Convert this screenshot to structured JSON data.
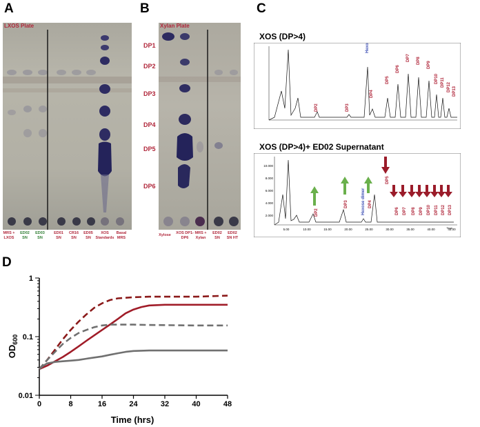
{
  "panel_labels": {
    "a": "A",
    "b": "B",
    "c": "C",
    "d": "D"
  },
  "panelA": {
    "title": "LXOS Plate",
    "lanes": [
      {
        "label": "MRS + LXOS",
        "color": "red"
      },
      {
        "label": "ED02 SN",
        "color": "green"
      },
      {
        "label": "ED03 SN",
        "color": "green"
      },
      {
        "label": "ED01 SN",
        "color": "red"
      },
      {
        "label": "CR16 SN",
        "color": "red"
      },
      {
        "label": "ED05 SN",
        "color": "red"
      },
      {
        "label": "XOS Standards",
        "color": "red"
      },
      {
        "label": "Basal MRS",
        "color": "red"
      }
    ]
  },
  "panelB": {
    "title": "Xylan Plate",
    "dp_labels": [
      "DP1",
      "DP2",
      "DP3",
      "DP4",
      "DP5",
      "DP6"
    ],
    "lanes": [
      {
        "label": "Xylose"
      },
      {
        "label": "XOS DP1-DP6"
      },
      {
        "label": "MRS + Xylan"
      },
      {
        "label": "ED02 SN"
      },
      {
        "label": "ED02 SN HT"
      }
    ]
  },
  "panelC": {
    "top_title": "XOS (DP>4)",
    "bottom_title": "XOS (DP>4)+ ED02 Supernatant",
    "peak_labels_top": [
      "DP2",
      "DP3",
      "Hexose dimer",
      "DP4",
      "DP5",
      "DP6",
      "DP7",
      "DP8",
      "DP9",
      "DP10",
      "DP11",
      "DP12",
      "DP13"
    ],
    "peak_labels_bottom": [
      "DP2",
      "DP3",
      "Hexose dimer",
      "DP4",
      "DP5",
      "DP6",
      "DP7",
      "DP8",
      "DP9",
      "DP10",
      "DP11",
      "DP12",
      "DP13"
    ],
    "bottom_xticks": [
      "5.00",
      "10.00",
      "15.00",
      "20.00",
      "25.00",
      "30.00",
      "35.00",
      "40.00",
      "45.00"
    ],
    "bottom_yticks": [
      "2.000",
      "4.000",
      "6.000",
      "8.000",
      "10.000"
    ],
    "bottom_xaxis_label": "Time"
  },
  "chart_data": {
    "type": "line",
    "title": "",
    "xlabel": "Time (hrs)",
    "ylabel": "OD600",
    "ylabel_main": "OD",
    "ylabel_sub": "600",
    "xlim": [
      0,
      48
    ],
    "ylim": [
      0.01,
      1
    ],
    "log_y": true,
    "xticks": [
      "0",
      "8",
      "16",
      "24",
      "32",
      "40",
      "48"
    ],
    "yticks": [
      "0.01",
      "0.1",
      "1"
    ],
    "series": [
      {
        "color": "#8b1a1a",
        "style": "dashed",
        "x": [
          0,
          2,
          4,
          6,
          8,
          10,
          12,
          14,
          16,
          18,
          20,
          24,
          28,
          32,
          36,
          40,
          44,
          48
        ],
        "y": [
          0.028,
          0.04,
          0.06,
          0.09,
          0.13,
          0.18,
          0.24,
          0.31,
          0.37,
          0.42,
          0.45,
          0.47,
          0.48,
          0.48,
          0.48,
          0.48,
          0.49,
          0.5
        ]
      },
      {
        "color": "#a01c28",
        "style": "solid",
        "x": [
          0,
          2,
          4,
          6,
          8,
          10,
          12,
          14,
          16,
          18,
          20,
          22,
          24,
          26,
          28,
          32,
          36,
          40,
          44,
          48
        ],
        "y": [
          0.028,
          0.032,
          0.038,
          0.045,
          0.055,
          0.068,
          0.085,
          0.105,
          0.13,
          0.16,
          0.2,
          0.25,
          0.29,
          0.32,
          0.34,
          0.35,
          0.35,
          0.35,
          0.35,
          0.35
        ]
      },
      {
        "color": "#707070",
        "style": "dashed",
        "x": [
          0,
          2,
          4,
          6,
          8,
          10,
          12,
          14,
          16,
          18,
          20,
          24,
          28,
          32,
          36,
          40,
          44,
          48
        ],
        "y": [
          0.028,
          0.04,
          0.055,
          0.075,
          0.095,
          0.115,
          0.13,
          0.145,
          0.155,
          0.16,
          0.16,
          0.16,
          0.158,
          0.157,
          0.156,
          0.155,
          0.155,
          0.155
        ]
      },
      {
        "color": "#707070",
        "style": "solid",
        "x": [
          0,
          1,
          2,
          4,
          6,
          8,
          10,
          12,
          14,
          16,
          18,
          20,
          22,
          24,
          28,
          32,
          36,
          40,
          44,
          48
        ],
        "y": [
          0.028,
          0.032,
          0.035,
          0.037,
          0.038,
          0.039,
          0.04,
          0.042,
          0.044,
          0.046,
          0.049,
          0.052,
          0.055,
          0.057,
          0.058,
          0.058,
          0.058,
          0.058,
          0.058,
          0.058
        ]
      }
    ]
  }
}
